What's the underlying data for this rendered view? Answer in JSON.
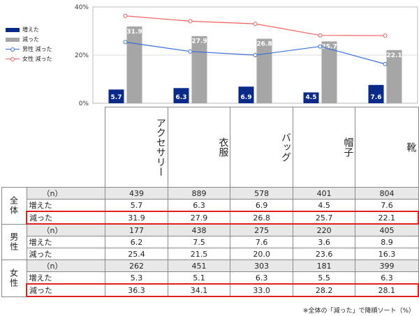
{
  "chart_data": {
    "type": "bar",
    "categories": [
      "アクセサリー",
      "衣服",
      "バッグ",
      "帽子",
      "靴"
    ],
    "yticks": [
      "40%",
      "20%",
      "0%"
    ],
    "ylim": [
      0,
      40
    ],
    "series": [
      {
        "name": "増えた",
        "kind": "bar",
        "color": "#0a2a8a",
        "values": [
          5.7,
          6.3,
          6.9,
          4.5,
          7.6
        ],
        "labels": [
          "5.7",
          "6.3",
          "6.9",
          "4.5",
          "7.6"
        ]
      },
      {
        "name": "減った",
        "kind": "bar",
        "color": "#a6a6a6",
        "values": [
          31.9,
          27.9,
          26.8,
          25.7,
          22.1
        ],
        "labels": [
          "31.9",
          "27.9",
          "26.8",
          "25.7",
          "22.1"
        ]
      },
      {
        "name": "男性 減った",
        "kind": "line",
        "color": "#3a6fd8",
        "values": [
          25.4,
          21.5,
          20.0,
          23.6,
          16.3
        ]
      },
      {
        "name": "女性 減った",
        "kind": "line",
        "color": "#f06060",
        "values": [
          36.3,
          34.1,
          33.0,
          28.2,
          28.1
        ]
      }
    ]
  },
  "table": {
    "groups": [
      {
        "name": "全体",
        "rows": [
          {
            "label": "（n）",
            "values": [
              "439",
              "889",
              "578",
              "401",
              "804"
            ],
            "shade": true,
            "hl": false
          },
          {
            "label": "増えた",
            "values": [
              "5.7",
              "6.3",
              "6.9",
              "4.5",
              "7.6"
            ],
            "shade": false,
            "hl": false
          },
          {
            "label": "減った",
            "values": [
              "31.9",
              "27.9",
              "26.8",
              "25.7",
              "22.1"
            ],
            "shade": false,
            "hl": true
          }
        ]
      },
      {
        "name": "男性",
        "rows": [
          {
            "label": "（n）",
            "values": [
              "177",
              "438",
              "275",
              "220",
              "405"
            ],
            "shade": true,
            "hl": false
          },
          {
            "label": "増えた",
            "values": [
              "6.2",
              "7.5",
              "7.6",
              "3.6",
              "8.9"
            ],
            "shade": false,
            "hl": false
          },
          {
            "label": "減った",
            "values": [
              "25.4",
              "21.5",
              "20.0",
              "23.6",
              "16.3"
            ],
            "shade": false,
            "hl": false
          }
        ]
      },
      {
        "name": "女性",
        "rows": [
          {
            "label": "（n）",
            "values": [
              "262",
              "451",
              "303",
              "181",
              "399"
            ],
            "shade": true,
            "hl": false
          },
          {
            "label": "増えた",
            "values": [
              "5.3",
              "5.1",
              "6.3",
              "5.5",
              "6.3"
            ],
            "shade": false,
            "hl": false
          },
          {
            "label": "減った",
            "values": [
              "36.3",
              "34.1",
              "33.0",
              "28.2",
              "28.1"
            ],
            "shade": false,
            "hl": true
          }
        ]
      }
    ]
  },
  "note": "※全体の「減った」で降順ソート（%）"
}
